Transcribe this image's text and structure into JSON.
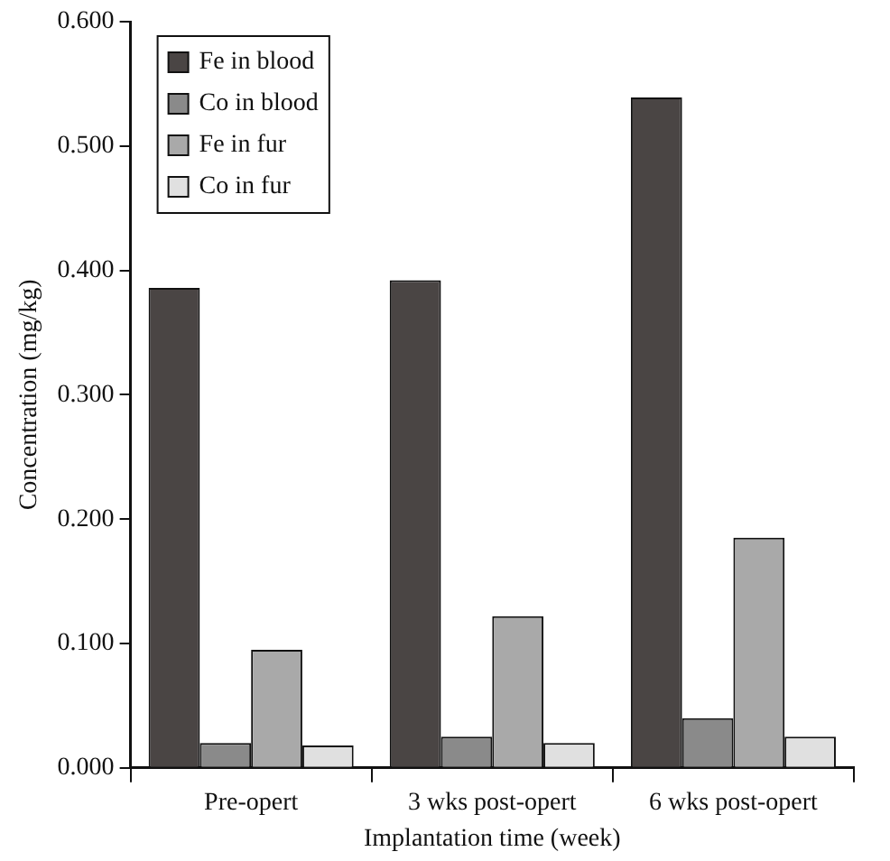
{
  "chart_data": {
    "type": "bar",
    "xlabel": "Implantation time (week)",
    "ylabel": "Concentration (mg/kg)",
    "categories": [
      "Pre-opert",
      "3 wks post-opert",
      "6 wks post-opert"
    ],
    "series": [
      {
        "name": "Fe in blood",
        "color": "#4a4544",
        "values": [
          0.386,
          0.392,
          0.539
        ]
      },
      {
        "name": "Co in blood",
        "color": "#8a8a8a",
        "values": [
          0.02,
          0.025,
          0.04
        ]
      },
      {
        "name": "Fe in fur",
        "color": "#a9a9a9",
        "values": [
          0.095,
          0.122,
          0.185
        ]
      },
      {
        "name": "Co in fur",
        "color": "#e0e0e0",
        "values": [
          0.018,
          0.02,
          0.025
        ]
      }
    ],
    "ylim": [
      0,
      0.6
    ],
    "yticks": [
      {
        "value": 0,
        "label": "0.000"
      },
      {
        "value": 0.1,
        "label": "0.100"
      },
      {
        "value": 0.2,
        "label": "0.200"
      },
      {
        "value": 0.3,
        "label": "0.300"
      },
      {
        "value": 0.4,
        "label": "0.400"
      },
      {
        "value": 0.5,
        "label": "0.500"
      },
      {
        "value": 0.6,
        "label": "0.600"
      }
    ],
    "grid": false,
    "legend": "top left"
  }
}
